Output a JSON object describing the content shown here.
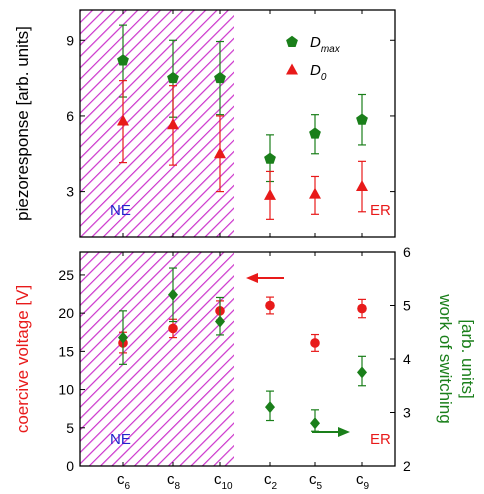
{
  "colors": {
    "hatch": "#cc33cc",
    "green": "#1a7f1a",
    "red": "#e81a1a",
    "blue_label": "#2222cc"
  },
  "chart_data": [
    {
      "type": "scatter",
      "panel": "top",
      "ylabel": "piezoresponse [arb. units]",
      "ylim": [
        1.2,
        10.2
      ],
      "yticks": [
        3,
        6,
        9
      ],
      "categories": [
        "c6",
        "c8",
        "c10",
        "c2",
        "c5",
        "c9"
      ],
      "category_labels": [
        {
          "base": "c",
          "sub": "6"
        },
        {
          "base": "c",
          "sub": "8"
        },
        {
          "base": "c",
          "sub": "10"
        },
        {
          "base": "c",
          "sub": "2"
        },
        {
          "base": "c",
          "sub": "5"
        },
        {
          "base": "c",
          "sub": "9"
        }
      ],
      "region_labels": {
        "left": "NE",
        "right": "ER"
      },
      "shaded_region": "NE",
      "legend_placement": "top-right",
      "series": [
        {
          "name": "D_max",
          "legend": {
            "base": "D",
            "sub": "max"
          },
          "marker": "pentagon",
          "color": "#1a7f1a",
          "values": [
            8.2,
            7.5,
            7.5,
            4.3,
            5.3,
            5.85
          ],
          "err_low": [
            6.75,
            5.95,
            6.05,
            3.4,
            4.5,
            4.85
          ],
          "err_high": [
            9.6,
            9.0,
            8.95,
            5.25,
            6.05,
            6.85
          ]
        },
        {
          "name": "D_0",
          "legend": {
            "base": "D",
            "sub": "0"
          },
          "marker": "triangle",
          "color": "#e81a1a",
          "values": [
            5.8,
            5.65,
            4.5,
            2.85,
            2.9,
            3.2
          ],
          "err_low": [
            4.15,
            4.05,
            3.0,
            1.9,
            2.1,
            2.2
          ],
          "err_high": [
            7.4,
            7.2,
            6.0,
            3.8,
            3.6,
            4.2
          ]
        }
      ]
    },
    {
      "type": "scatter",
      "panel": "bottom",
      "ylabel": "coercive voltage [V]",
      "y2label": [
        "work of switching",
        "[arb. units]"
      ],
      "ylim": [
        0,
        28
      ],
      "yticks": [
        0,
        5,
        10,
        15,
        20,
        25
      ],
      "y2lim": [
        2,
        6
      ],
      "y2ticks": [
        2,
        3,
        4,
        5,
        6
      ],
      "categories": [
        "c6",
        "c8",
        "c10",
        "c2",
        "c5",
        "c9"
      ],
      "region_labels": {
        "left": "NE",
        "right": "ER"
      },
      "shaded_region": "NE",
      "series": [
        {
          "name": "coercive voltage",
          "axis": "left",
          "marker": "circle",
          "color": "#e81a1a",
          "values": [
            16.1,
            18.0,
            20.3,
            21.0,
            16.1,
            20.6
          ],
          "err_low": [
            14.8,
            16.8,
            19.1,
            19.9,
            15.0,
            19.4
          ],
          "err_high": [
            17.5,
            19.2,
            21.6,
            22.1,
            17.2,
            21.8
          ]
        },
        {
          "name": "work of switching",
          "axis": "right",
          "marker": "diamond",
          "color": "#1a7f1a",
          "values": [
            4.4,
            5.2,
            4.7,
            3.1,
            2.8,
            3.75
          ],
          "err_low": [
            3.9,
            4.7,
            4.45,
            2.85,
            2.65,
            3.5
          ],
          "err_high": [
            4.9,
            5.7,
            5.15,
            3.4,
            3.05,
            4.05
          ]
        }
      ]
    }
  ]
}
